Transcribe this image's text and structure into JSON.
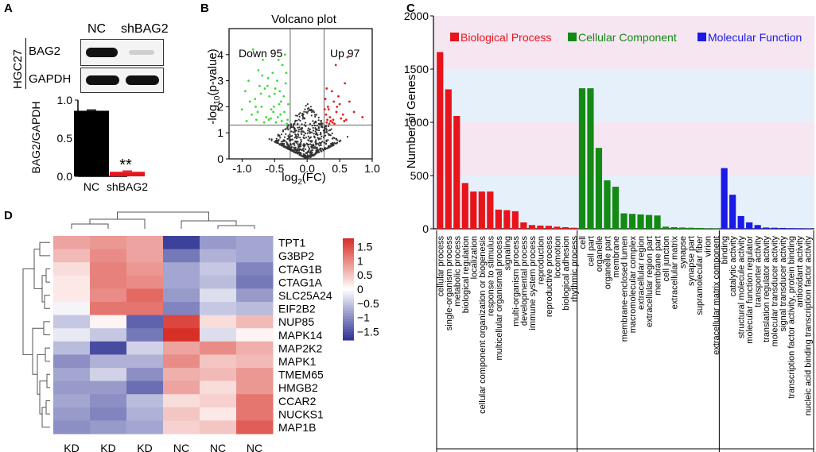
{
  "panels": {
    "a": "A",
    "b": "B",
    "c": "C",
    "d": "D"
  },
  "western_blot": {
    "lanes": [
      "NC",
      "shBAG2"
    ],
    "cell_line": "HGC27",
    "proteins": [
      "BAG2",
      "GAPDH"
    ]
  },
  "colors": {
    "bp": "#e8141b",
    "cc": "#138a13",
    "mf": "#1a1ae6",
    "bp_band": "#f6e6f2",
    "cc_band": "#e6f0fb",
    "mf_band": "#f6e6f2",
    "volcano_up": "#e81c1c",
    "volcano_down": "#3adb3a",
    "volcano_ns": "#333333"
  },
  "chart_data": [
    {
      "id": "bar_bag2",
      "type": "bar",
      "title": "",
      "categories": [
        "NC",
        "shBAG2"
      ],
      "values": [
        0.86,
        0.06
      ],
      "errors": [
        0.01,
        0.01
      ],
      "colors": [
        "#000000",
        "#e8141b"
      ],
      "ylabel": "BAG2/GAPDH",
      "ylim": [
        0,
        1.0
      ],
      "yticks": [
        "0.0",
        "0.5",
        "1.0"
      ],
      "yticks_values": [
        0,
        0.5,
        1.0
      ],
      "annotation": "**"
    },
    {
      "id": "volcano",
      "type": "scatter",
      "title": "Volcano plot",
      "xlabel_prefix": "log",
      "xlabel_sub": "2",
      "xlabel_suffix": "(FC)",
      "ylabel_prefix": "-log",
      "ylabel_sub": "10",
      "ylabel_suffix": "(p-value)",
      "xlim": [
        -1.2,
        1.0
      ],
      "ylim": [
        0,
        5.0
      ],
      "xticks": [
        "-1.0",
        "-0.5",
        "0.0",
        "0.5",
        "1.0"
      ],
      "xticks_values": [
        -1.0,
        -0.5,
        0.0,
        0.5,
        1.0
      ],
      "yticks": [
        "0",
        "1",
        "2",
        "3",
        "4"
      ],
      "yticks_values": [
        0,
        1,
        2,
        3,
        4
      ],
      "thresholds": {
        "x": [
          -0.26,
          0.26
        ],
        "y": 1.3
      },
      "down_label": "Down 95",
      "up_label": "Up 97",
      "up_points": [
        [
          0.3,
          1.4
        ],
        [
          0.35,
          1.6
        ],
        [
          0.32,
          2.0
        ],
        [
          0.4,
          1.5
        ],
        [
          0.45,
          1.8
        ],
        [
          0.28,
          2.3
        ],
        [
          0.5,
          2.1
        ],
        [
          0.55,
          1.7
        ],
        [
          0.38,
          2.6
        ],
        [
          0.42,
          1.35
        ],
        [
          0.6,
          1.5
        ],
        [
          0.33,
          1.9
        ],
        [
          0.48,
          2.4
        ],
        [
          0.85,
          1.6
        ],
        [
          0.65,
          2.2
        ],
        [
          0.58,
          2.9
        ],
        [
          0.3,
          2.7
        ],
        [
          0.72,
          1.8
        ],
        [
          0.36,
          1.45
        ],
        [
          0.44,
          3.6
        ],
        [
          0.52,
          1.55
        ],
        [
          0.29,
          1.7
        ],
        [
          0.62,
          3.9
        ],
        [
          0.31,
          1.5
        ],
        [
          0.46,
          2.0
        ],
        [
          0.39,
          1.4
        ],
        [
          0.27,
          1.9
        ],
        [
          0.34,
          1.35
        ],
        [
          0.41,
          2.2
        ],
        [
          0.57,
          1.45
        ]
      ],
      "down_points": [
        [
          -0.3,
          1.5
        ],
        [
          -0.35,
          1.8
        ],
        [
          -0.4,
          2.2
        ],
        [
          -0.45,
          1.6
        ],
        [
          -0.5,
          2.5
        ],
        [
          -0.55,
          1.9
        ],
        [
          -0.6,
          3.1
        ],
        [
          -0.65,
          2.7
        ],
        [
          -0.7,
          2.0
        ],
        [
          -0.75,
          3.4
        ],
        [
          -0.8,
          2.3
        ],
        [
          -0.85,
          1.7
        ],
        [
          -0.9,
          3.0
        ],
        [
          -0.95,
          2.6
        ],
        [
          -1.0,
          1.9
        ],
        [
          -0.33,
          2.9
        ],
        [
          -0.38,
          3.6
        ],
        [
          -0.43,
          2.1
        ],
        [
          -0.48,
          1.4
        ],
        [
          -0.53,
          3.3
        ],
        [
          -0.58,
          2.4
        ],
        [
          -0.63,
          1.6
        ],
        [
          -0.68,
          3.8
        ],
        [
          -0.73,
          2.8
        ],
        [
          -0.78,
          1.5
        ],
        [
          -0.83,
          4.2
        ],
        [
          -0.88,
          2.2
        ],
        [
          -0.93,
          1.45
        ],
        [
          -0.31,
          1.35
        ],
        [
          -0.36,
          2.4
        ],
        [
          -0.41,
          1.7
        ],
        [
          -0.46,
          3.0
        ],
        [
          -0.51,
          2.0
        ],
        [
          -0.56,
          1.55
        ],
        [
          -0.61,
          2.8
        ],
        [
          -0.66,
          1.4
        ],
        [
          -0.71,
          2.5
        ],
        [
          -0.76,
          1.8
        ],
        [
          -0.34,
          4.0
        ],
        [
          -0.44,
          3.8
        ],
        [
          -0.29,
          2.1
        ],
        [
          -0.39,
          1.45
        ],
        [
          -0.49,
          2.7
        ],
        [
          -0.59,
          1.5
        ],
        [
          -0.69,
          3.2
        ],
        [
          -0.79,
          2.0
        ],
        [
          -0.32,
          3.3
        ],
        [
          -0.42,
          2.6
        ],
        [
          -0.52,
          1.8
        ]
      ],
      "ns_count": 600
    },
    {
      "id": "go_bar",
      "type": "bar",
      "title": "",
      "ylabel": "Number of Genes",
      "ylim": [
        0,
        2000
      ],
      "yticks": [
        "0",
        "500",
        "1000",
        "1500",
        "2000"
      ],
      "yticks_values": [
        0,
        500,
        1000,
        1500,
        2000
      ],
      "legend": [
        "Biological Process",
        "Cellular Component",
        "Molecular Function"
      ],
      "groups": [
        {
          "name": "Biological Process",
          "color": "#e8141b",
          "categories": [
            "cellular process",
            "single-organism process",
            "metabolic process",
            "biological regulation",
            "localization",
            "cellular component organization or biogenesis",
            "response to stimulus",
            "multicellular organismal process",
            "signaling",
            "multi-organism process",
            "developmental process",
            "immune system process",
            "reproduction",
            "reproductive process",
            "locomotion",
            "biological adhesion",
            "rhythmic process"
          ],
          "values": [
            1660,
            1310,
            1060,
            430,
            350,
            350,
            350,
            180,
            175,
            165,
            60,
            35,
            30,
            28,
            20,
            15,
            10
          ]
        },
        {
          "name": "Cellular Component",
          "color": "#138a13",
          "categories": [
            "cell",
            "cell part",
            "organelle",
            "organelle part",
            "membrane",
            "membrane-enclosed lumen",
            "macromolecular complex",
            "extracellular region",
            "extracellular region part",
            "membrane part",
            "cell junction",
            "extracellular matrix",
            "synapse",
            "synapse part",
            "supramolecular fiber",
            "virion",
            "extracellular matrix component"
          ],
          "values": [
            1320,
            1320,
            760,
            455,
            395,
            145,
            140,
            135,
            130,
            125,
            20,
            15,
            12,
            10,
            8,
            5,
            3
          ]
        },
        {
          "name": "Molecular Function",
          "color": "#1a1ae6",
          "categories": [
            "binding",
            "catalytic activity",
            "structural molecule activity",
            "molecular function regulator",
            "transporter activity",
            "translation regulator activity",
            "molecular transducer activity",
            "signal transducer activity",
            "transcription factor activity, protein binding",
            "antioxidant activity",
            "nucleic acid binding transcription factor activity"
          ],
          "values": [
            570,
            320,
            120,
            60,
            35,
            12,
            10,
            8,
            6,
            5,
            4
          ]
        }
      ]
    },
    {
      "id": "heatmap",
      "type": "heatmap",
      "title": "",
      "rows": [
        "TPT1",
        "G3BP2",
        "CTAG1B",
        "CTAG1A",
        "SLC25A24",
        "EIF2B2",
        "NUP85",
        "MAPK14",
        "MAP2K2",
        "MAPK1",
        "TMEM65",
        "HMGB2",
        "CCAR2",
        "NUCKS1",
        "MAP1B"
      ],
      "columns": [
        "KD",
        "KD",
        "KD",
        "NC",
        "NC",
        "NC"
      ],
      "values": [
        [
          0.8,
          0.9,
          0.8,
          -1.7,
          -0.9,
          -0.8
        ],
        [
          0.6,
          1.0,
          0.8,
          -1.2,
          -0.7,
          -0.8
        ],
        [
          0.3,
          1.1,
          0.9,
          -0.8,
          -0.5,
          -1.1
        ],
        [
          0.2,
          1.1,
          1.0,
          -0.8,
          -0.6,
          -1.2
        ],
        [
          0.2,
          1.0,
          1.3,
          -0.9,
          -0.3,
          -0.9
        ],
        [
          -0.1,
          1.2,
          1.2,
          -1.1,
          -0.5,
          -0.6
        ],
        [
          -0.5,
          0.1,
          -1.4,
          1.6,
          0.3,
          0.6
        ],
        [
          -0.2,
          -0.5,
          -1.2,
          1.8,
          -0.3,
          0.1
        ],
        [
          -0.6,
          -1.6,
          -0.4,
          0.8,
          1.0,
          0.7
        ],
        [
          -1.0,
          -0.7,
          -0.7,
          1.0,
          0.5,
          0.6
        ],
        [
          -0.8,
          -0.4,
          -1.0,
          0.7,
          0.6,
          0.9
        ],
        [
          -0.9,
          -0.9,
          -1.3,
          0.8,
          0.3,
          0.9
        ],
        [
          -0.8,
          -1.0,
          -0.6,
          0.3,
          0.4,
          1.2
        ],
        [
          -0.9,
          -1.1,
          -0.7,
          0.5,
          0.2,
          1.2
        ],
        [
          -1.0,
          -0.9,
          -0.8,
          0.4,
          0.5,
          1.4
        ]
      ],
      "colorbar_ticks": [
        "1.5",
        "1",
        "0.5",
        "0",
        "−0.5",
        "−1",
        "−1.5"
      ],
      "colorbar_values": [
        1.5,
        1,
        0.5,
        0,
        -0.5,
        -1,
        -1.5
      ],
      "vmin": -1.8,
      "vmax": 1.8
    }
  ]
}
